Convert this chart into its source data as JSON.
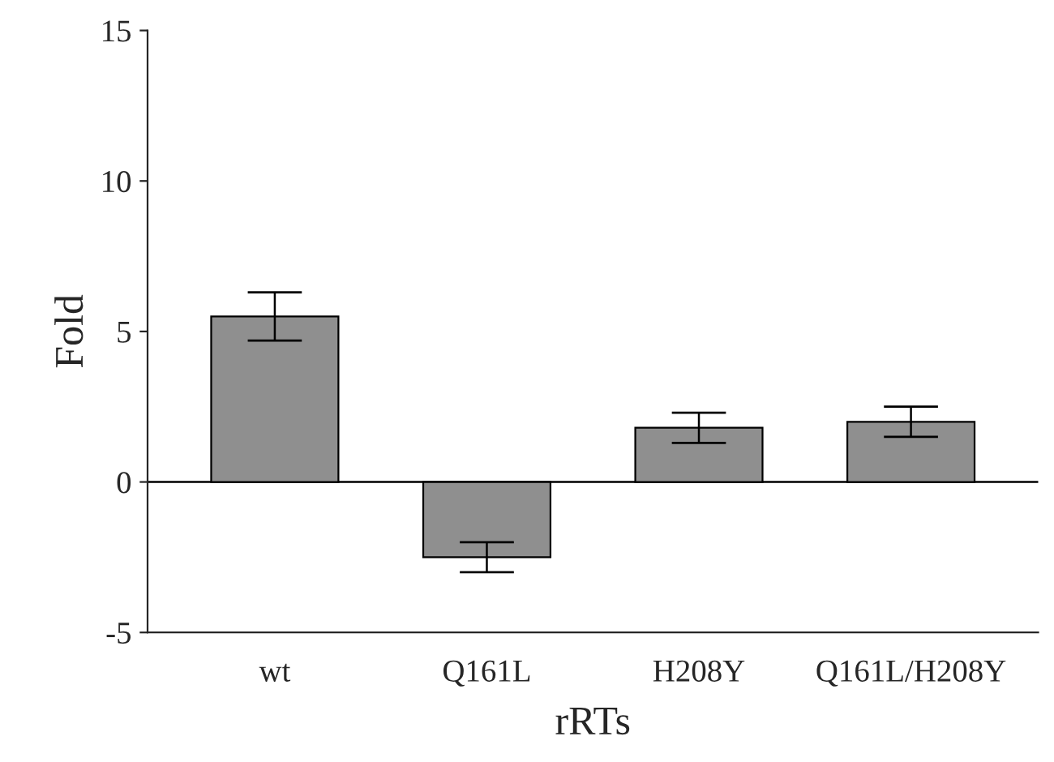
{
  "chart_data": {
    "type": "bar",
    "xlabel": "rRTs",
    "ylabel": "Fold",
    "categories": [
      "wt",
      "Q161L",
      "H208Y",
      "Q161L/H208Y"
    ],
    "values": [
      5.5,
      -2.5,
      1.8,
      2.0
    ],
    "errors": [
      0.8,
      0.5,
      0.5,
      0.5
    ],
    "color": "#8f8f8f",
    "ylim": [
      -5,
      15
    ],
    "yticks": [
      -5,
      0,
      5,
      10,
      15
    ],
    "ref_lines": [
      {
        "axis": "y",
        "value": 0,
        "label": null
      }
    ],
    "grid": false,
    "legend": false
  }
}
